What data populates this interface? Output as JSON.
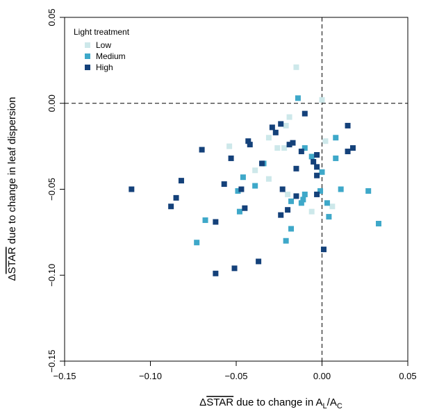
{
  "chart_data": {
    "type": "scatter",
    "xlabel": {
      "pre": "Δ",
      "over": "STAR",
      "mid": " due to change in A",
      "sub1": "L",
      "slash": "/A",
      "sub2": "C"
    },
    "ylabel": {
      "pre": "Δ",
      "over": "STAR",
      "post": " due to change in leaf dispersion"
    },
    "xlim": [
      -0.15,
      0.05
    ],
    "ylim": [
      -0.15,
      0.05
    ],
    "xticks": [
      "-0.15",
      "-0.10",
      "-0.05",
      "0.00",
      "0.05"
    ],
    "yticks": [
      "-0.15",
      "-0.10",
      "-0.05",
      "0.00",
      "0.05"
    ],
    "reference_lines": {
      "x": 0,
      "y": 0,
      "style": "dashed"
    },
    "legend": {
      "title": "Light treatment",
      "position": "top-left"
    },
    "series": [
      {
        "name": "Low",
        "color": "#cde8ea",
        "points": [
          [
            -0.015,
            0.021
          ],
          [
            0.0,
            0.002
          ],
          [
            -0.019,
            -0.008
          ],
          [
            -0.021,
            -0.013
          ],
          [
            -0.031,
            -0.02
          ],
          [
            -0.026,
            -0.026
          ],
          [
            -0.022,
            -0.026
          ],
          [
            0.002,
            -0.022
          ],
          [
            -0.054,
            -0.025
          ],
          [
            -0.039,
            -0.039
          ],
          [
            -0.031,
            -0.044
          ],
          [
            -0.006,
            -0.063
          ],
          [
            0.006,
            -0.06
          ],
          [
            -0.02,
            -0.053
          ]
        ]
      },
      {
        "name": "Medium",
        "color": "#3ea8c9",
        "points": [
          [
            -0.014,
            0.003
          ],
          [
            0.008,
            -0.02
          ],
          [
            -0.01,
            -0.026
          ],
          [
            -0.006,
            -0.031
          ],
          [
            -0.034,
            -0.035
          ],
          [
            0.008,
            -0.032
          ],
          [
            0.0,
            -0.04
          ],
          [
            -0.046,
            -0.043
          ],
          [
            -0.039,
            -0.048
          ],
          [
            -0.049,
            -0.051
          ],
          [
            0.011,
            -0.05
          ],
          [
            -0.001,
            -0.051
          ],
          [
            0.027,
            -0.051
          ],
          [
            -0.01,
            -0.053
          ],
          [
            -0.011,
            -0.056
          ],
          [
            -0.018,
            -0.057
          ],
          [
            -0.012,
            -0.058
          ],
          [
            0.003,
            -0.058
          ],
          [
            -0.048,
            -0.063
          ],
          [
            0.004,
            -0.066
          ],
          [
            -0.068,
            -0.068
          ],
          [
            -0.018,
            -0.073
          ],
          [
            0.033,
            -0.07
          ],
          [
            -0.021,
            -0.08
          ],
          [
            -0.073,
            -0.081
          ]
        ]
      },
      {
        "name": "High",
        "color": "#14417a",
        "points": [
          [
            0.015,
            -0.013
          ],
          [
            -0.01,
            -0.006
          ],
          [
            -0.024,
            -0.012
          ],
          [
            -0.029,
            -0.014
          ],
          [
            -0.027,
            -0.017
          ],
          [
            -0.043,
            -0.022
          ],
          [
            -0.042,
            -0.024
          ],
          [
            -0.019,
            -0.024
          ],
          [
            -0.017,
            -0.023
          ],
          [
            -0.07,
            -0.027
          ],
          [
            0.018,
            -0.026
          ],
          [
            0.015,
            -0.028
          ],
          [
            -0.012,
            -0.028
          ],
          [
            -0.053,
            -0.032
          ],
          [
            -0.003,
            -0.03
          ],
          [
            -0.005,
            -0.034
          ],
          [
            -0.035,
            -0.035
          ],
          [
            -0.015,
            -0.038
          ],
          [
            -0.003,
            -0.037
          ],
          [
            -0.003,
            -0.042
          ],
          [
            -0.057,
            -0.047
          ],
          [
            -0.082,
            -0.045
          ],
          [
            -0.023,
            -0.05
          ],
          [
            -0.003,
            -0.053
          ],
          [
            -0.111,
            -0.05
          ],
          [
            -0.047,
            -0.05
          ],
          [
            -0.015,
            -0.054
          ],
          [
            -0.085,
            -0.055
          ],
          [
            -0.088,
            -0.06
          ],
          [
            -0.045,
            -0.061
          ],
          [
            -0.02,
            -0.062
          ],
          [
            -0.024,
            -0.065
          ],
          [
            -0.062,
            -0.069
          ],
          [
            0.001,
            -0.085
          ],
          [
            -0.037,
            -0.092
          ],
          [
            -0.051,
            -0.096
          ],
          [
            -0.062,
            -0.099
          ]
        ]
      }
    ]
  }
}
